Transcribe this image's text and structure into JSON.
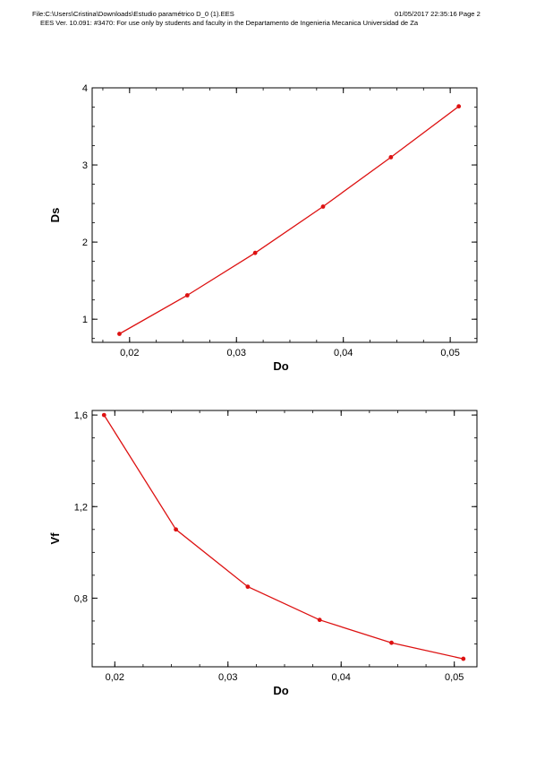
{
  "header": {
    "file": "File:C:\\Users\\Cristina\\Downloads\\Estudio paramétrico D_0 (1).EES",
    "datetime_page": "01/05/2017 22:35:16  Page 2",
    "license": "EES Ver. 10.091: #3470:  For use only by students and faculty in the  Departamento de  Ingenieria Mecanica Universidad de Za"
  },
  "colors": {
    "series": "#dd1111",
    "axis": "#000000"
  },
  "chart_data": [
    {
      "type": "line",
      "xlabel": "Do",
      "ylabel": "Ds",
      "xlim": [
        0.0165,
        0.0525
      ],
      "ylim": [
        0.7,
        4.0
      ],
      "xticks": [
        0.02,
        0.03,
        0.04,
        0.05
      ],
      "xtick_labels": [
        "0,02",
        "0,03",
        "0,04",
        "0,05"
      ],
      "yticks": [
        1,
        2,
        3,
        4
      ],
      "ytick_labels": [
        "1",
        "2",
        "3",
        "4"
      ],
      "x_minor_step": 0.0025,
      "y_minor_step": 0.25,
      "grid": false,
      "series": [
        {
          "x": [
            0.01905,
            0.0254,
            0.03175,
            0.0381,
            0.04445,
            0.0508
          ],
          "y": [
            0.81,
            1.31,
            1.86,
            2.46,
            3.1,
            3.76
          ]
        }
      ]
    },
    {
      "type": "line",
      "xlabel": "Do",
      "ylabel": "Vf",
      "xlim": [
        0.018,
        0.052
      ],
      "ylim": [
        0.5,
        1.62
      ],
      "xticks": [
        0.02,
        0.03,
        0.04,
        0.05
      ],
      "xtick_labels": [
        "0,02",
        "0,03",
        "0,04",
        "0,05"
      ],
      "yticks": [
        0.8,
        1.2,
        1.6
      ],
      "ytick_labels": [
        "0,8",
        "1,2",
        "1,6"
      ],
      "x_minor_step": 0.0025,
      "y_minor_step": 0.1,
      "grid": false,
      "series": [
        {
          "x": [
            0.01905,
            0.0254,
            0.03175,
            0.0381,
            0.04445,
            0.0508
          ],
          "y": [
            1.6,
            1.1,
            0.85,
            0.705,
            0.605,
            0.535
          ]
        }
      ]
    }
  ]
}
